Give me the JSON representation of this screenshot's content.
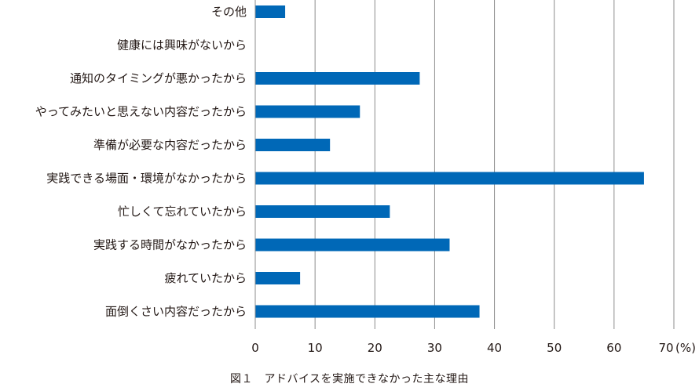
{
  "chart_data": {
    "type": "bar",
    "orientation": "horizontal",
    "categories": [
      "その他",
      "健康には興味がないから",
      "通知のタイミングが悪かったから",
      "やってみたいと思えない内容だったから",
      "準備が必要な内容だったから",
      "実践できる場面・環境がなかったから",
      "忙しくて忘れていたから",
      "実践する時間がなかったから",
      "疲れていたから",
      "面倒くさい内容だったから"
    ],
    "values": [
      5,
      0,
      27.5,
      17.5,
      12.5,
      65,
      22.5,
      32.5,
      7.5,
      37.5
    ],
    "xlim": [
      0,
      70
    ],
    "xticks": [
      "0",
      "10",
      "20",
      "30",
      "40",
      "50",
      "60",
      "70"
    ],
    "xunit": "(%)",
    "grid": true,
    "bar_color": "#0068b7",
    "grid_color": "#8c8c8c",
    "caption": "図１　アドバイスを実施できなかった主な理由"
  }
}
